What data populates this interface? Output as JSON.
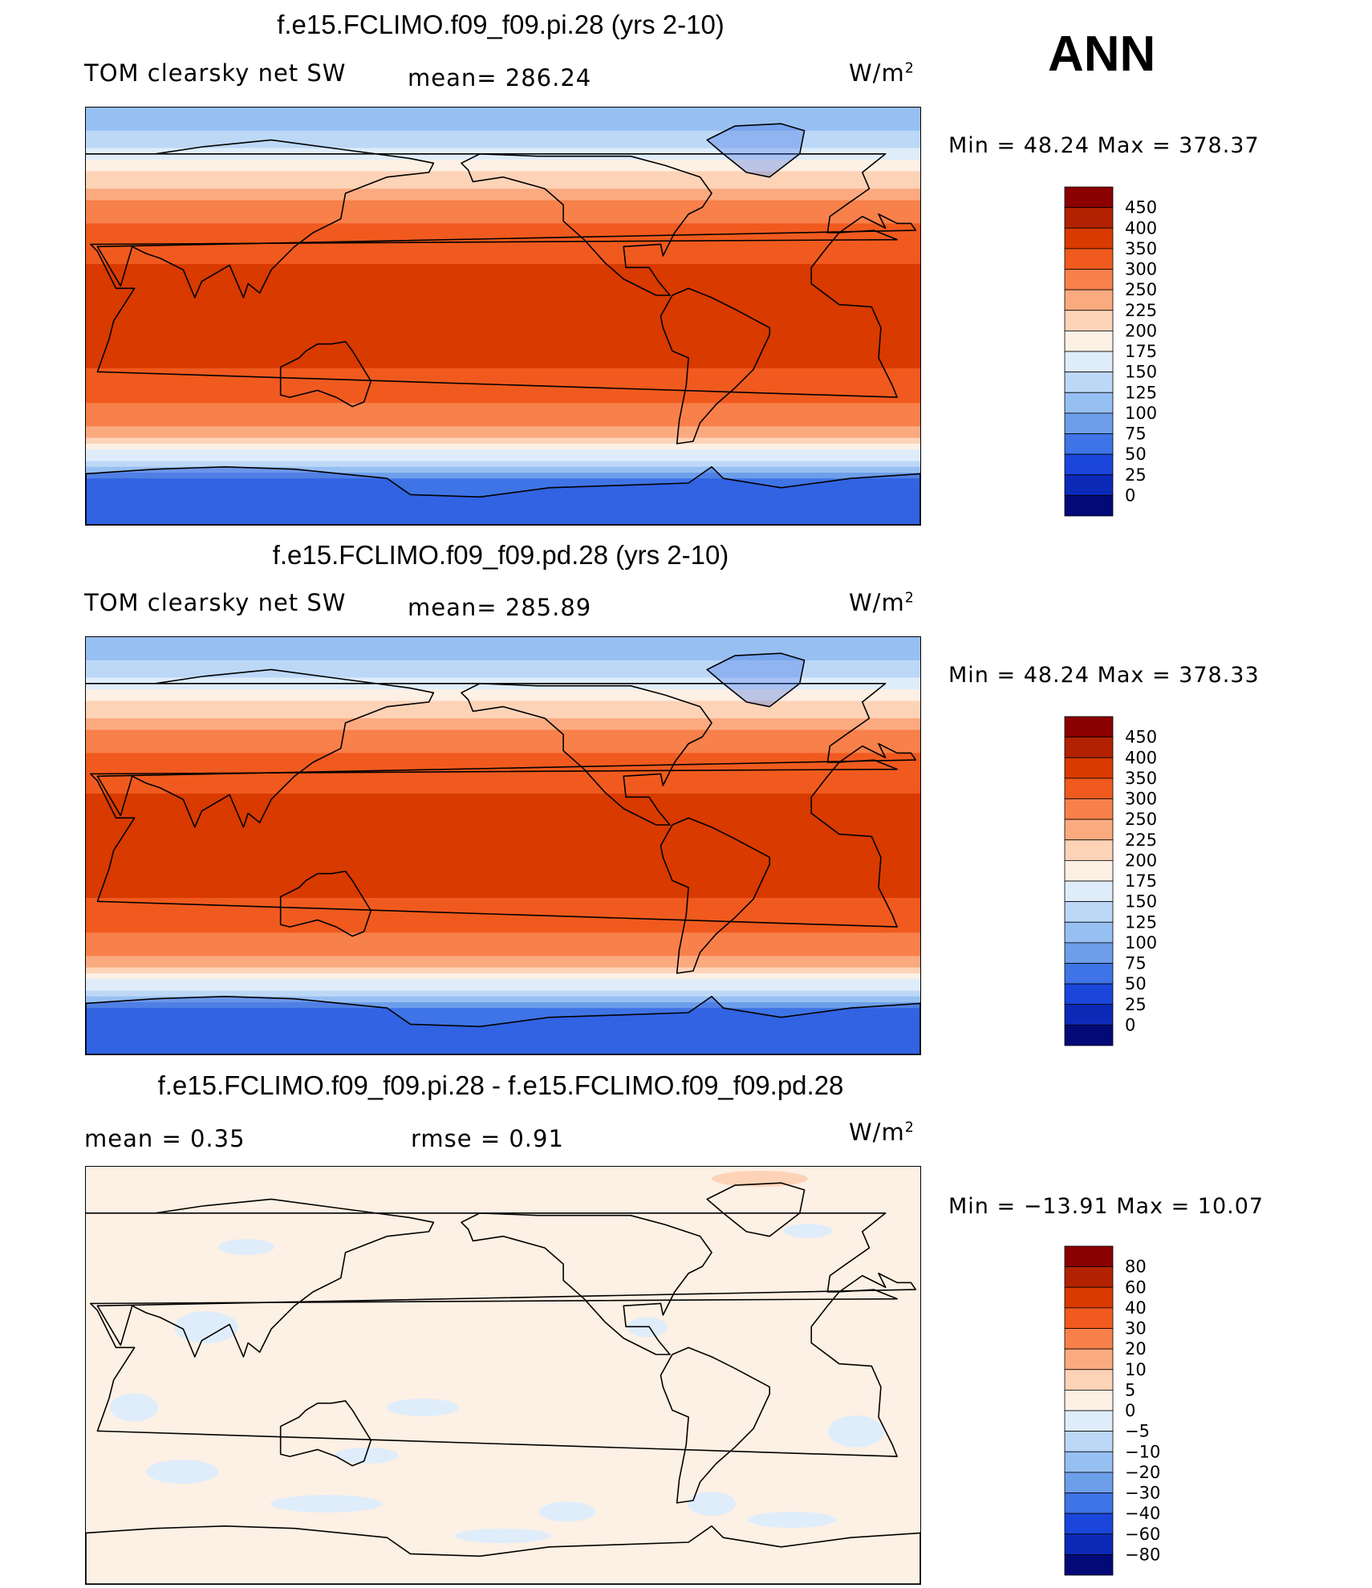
{
  "season": "ANN",
  "units": "W/m",
  "units_exp": "2",
  "panels": [
    {
      "title": "f.e15.FCLIMO.f09_f09.pi.28 (yrs 2-10)",
      "left_label": "TOM clearsky net SW",
      "stat_label": "mean= 286.24",
      "minmax": "Min =   48.24 Max = 378.37"
    },
    {
      "title": "f.e15.FCLIMO.f09_f09.pd.28 (yrs 2-10)",
      "left_label": "TOM clearsky net SW",
      "stat_label": "mean= 285.89",
      "minmax": "Min =   48.24 Max = 378.33"
    },
    {
      "title": "f.e15.FCLIMO.f09_f09.pi.28 - f.e15.FCLIMO.f09_f09.pd.28",
      "left_label": "mean =    0.35",
      "stat_label": "rmse =    0.91",
      "minmax": "Min = −13.91 Max =   10.07"
    }
  ],
  "chart_data": [
    {
      "type": "heatmap",
      "title": "f.e15.FCLIMO.f09_f09.pi.28 (yrs 2-10)",
      "variable": "TOM clearsky net SW",
      "units": "W/m2",
      "mean": 286.24,
      "min": 48.24,
      "max": 378.37,
      "levels": [
        450,
        400,
        350,
        300,
        250,
        225,
        200,
        175,
        150,
        125,
        100,
        75,
        50,
        25,
        0
      ],
      "colors": [
        "#8b0000",
        "#b22200",
        "#d83a00",
        "#f05a1e",
        "#f8804a",
        "#fbaa80",
        "#fdd3b8",
        "#fdf0e4",
        "#dfedfb",
        "#bdd8f7",
        "#97c0f2",
        "#6d9ee9",
        "#3e74e6",
        "#1a46dc",
        "#0c2ab8",
        "#030a78"
      ],
      "zonal_profile": [
        {
          "lat": 90,
          "value": 110
        },
        {
          "lat": 80,
          "value": 120
        },
        {
          "lat": 70,
          "value": 165
        },
        {
          "lat": 60,
          "value": 205
        },
        {
          "lat": 50,
          "value": 245
        },
        {
          "lat": 40,
          "value": 300
        },
        {
          "lat": 30,
          "value": 330
        },
        {
          "lat": 20,
          "value": 355
        },
        {
          "lat": 0,
          "value": 370
        },
        {
          "lat": -20,
          "value": 355
        },
        {
          "lat": -30,
          "value": 330
        },
        {
          "lat": -40,
          "value": 290
        },
        {
          "lat": -50,
          "value": 235
        },
        {
          "lat": -60,
          "value": 165
        },
        {
          "lat": -70,
          "value": 75
        },
        {
          "lat": -80,
          "value": 60
        }
      ]
    },
    {
      "type": "heatmap",
      "title": "f.e15.FCLIMO.f09_f09.pd.28 (yrs 2-10)",
      "variable": "TOM clearsky net SW",
      "units": "W/m2",
      "mean": 285.89,
      "min": 48.24,
      "max": 378.33,
      "levels": [
        450,
        400,
        350,
        300,
        250,
        225,
        200,
        175,
        150,
        125,
        100,
        75,
        50,
        25,
        0
      ],
      "colors": [
        "#8b0000",
        "#b22200",
        "#d83a00",
        "#f05a1e",
        "#f8804a",
        "#fbaa80",
        "#fdd3b8",
        "#fdf0e4",
        "#dfedfb",
        "#bdd8f7",
        "#97c0f2",
        "#6d9ee9",
        "#3e74e6",
        "#1a46dc",
        "#0c2ab8",
        "#030a78"
      ],
      "zonal_profile": [
        {
          "lat": 90,
          "value": 110
        },
        {
          "lat": 80,
          "value": 120
        },
        {
          "lat": 70,
          "value": 165
        },
        {
          "lat": 60,
          "value": 205
        },
        {
          "lat": 50,
          "value": 245
        },
        {
          "lat": 40,
          "value": 300
        },
        {
          "lat": 30,
          "value": 330
        },
        {
          "lat": 20,
          "value": 355
        },
        {
          "lat": 0,
          "value": 370
        },
        {
          "lat": -20,
          "value": 355
        },
        {
          "lat": -30,
          "value": 330
        },
        {
          "lat": -40,
          "value": 290
        },
        {
          "lat": -50,
          "value": 235
        },
        {
          "lat": -60,
          "value": 165
        },
        {
          "lat": -70,
          "value": 75
        },
        {
          "lat": -80,
          "value": 60
        }
      ]
    },
    {
      "type": "heatmap",
      "title": "f.e15.FCLIMO.f09_f09.pi.28 - f.e15.FCLIMO.f09_f09.pd.28",
      "units": "W/m2",
      "mean": 0.35,
      "rmse": 0.91,
      "min": -13.91,
      "max": 10.07,
      "levels": [
        80,
        60,
        40,
        30,
        20,
        10,
        5,
        0,
        -5,
        -10,
        -20,
        -30,
        -40,
        -60,
        -80
      ],
      "level_labels": [
        "80",
        "60",
        "40",
        "30",
        "20",
        "10",
        "5",
        "0",
        "−5",
        "−10",
        "−20",
        "−30",
        "−40",
        "−60",
        "−80"
      ],
      "colors": [
        "#8b0000",
        "#b22200",
        "#d83a00",
        "#f05a1e",
        "#f8804a",
        "#fbaa80",
        "#fdd3b8",
        "#fdf0e4",
        "#dfedfb",
        "#bdd8f7",
        "#97c0f2",
        "#6d9ee9",
        "#3e74e6",
        "#1a46dc",
        "#0c2ab8",
        "#030a78"
      ],
      "dominant_range": [
        -5,
        5
      ]
    }
  ]
}
